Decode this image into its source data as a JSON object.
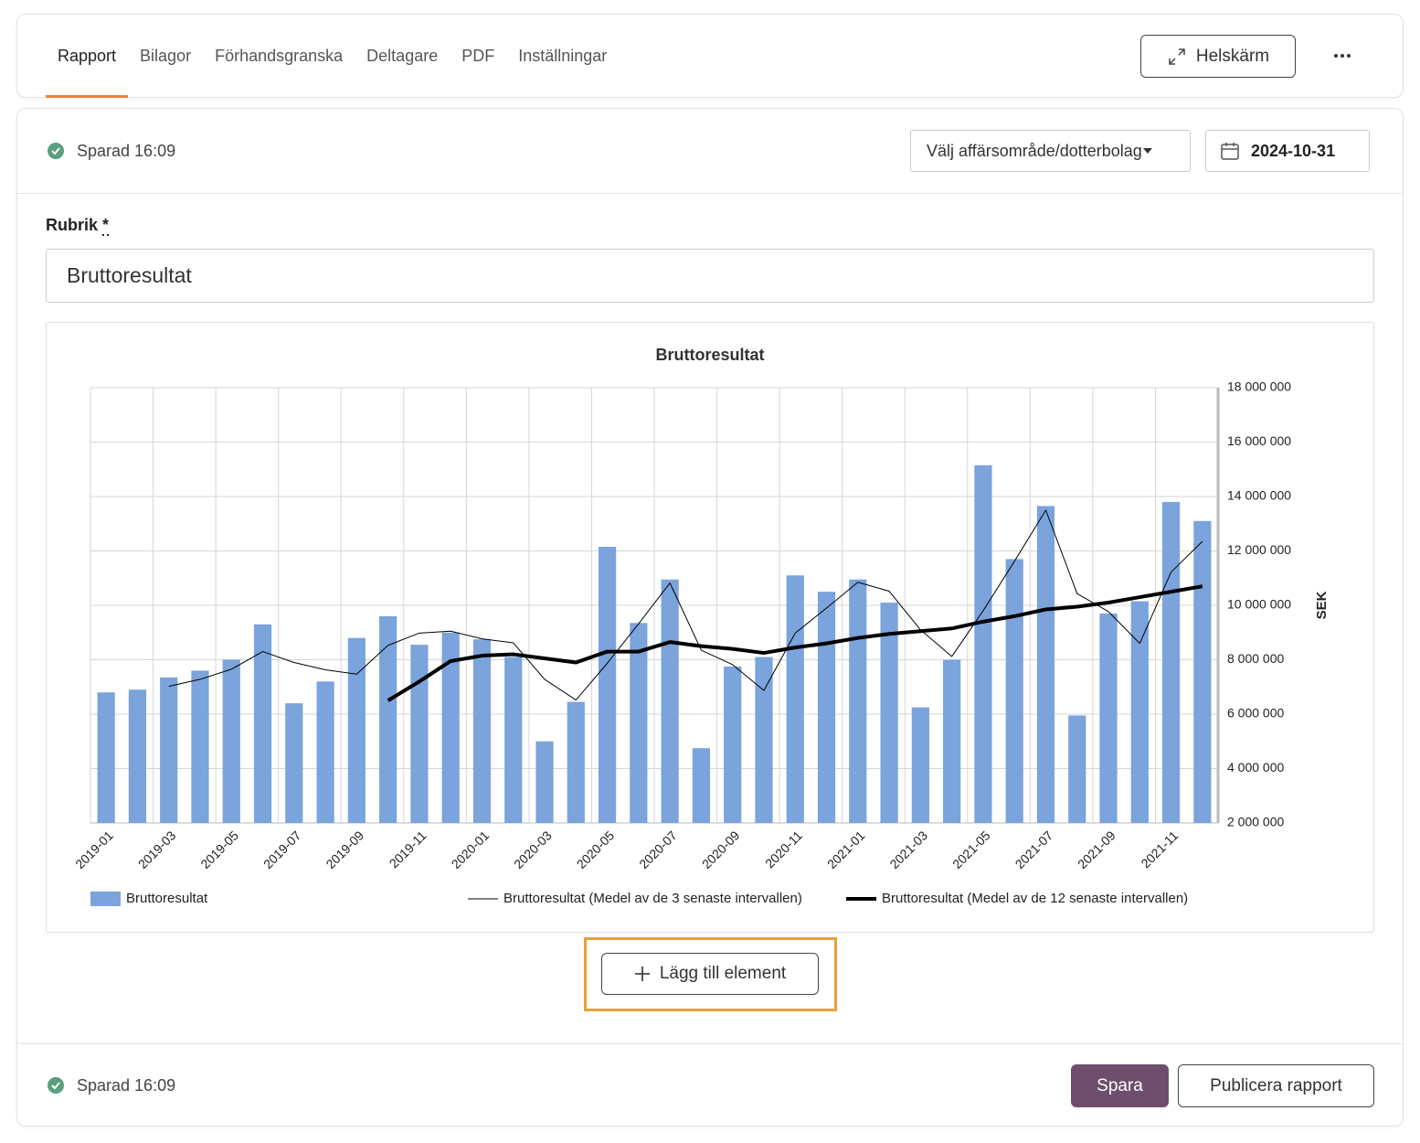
{
  "tabs": [
    "Rapport",
    "Bilagor",
    "Förhandsgranska",
    "Deltagare",
    "PDF",
    "Inställningar"
  ],
  "active_tab": 0,
  "fullscreen_button": "Helskärm",
  "status_top": "Sparad 16:09",
  "segment_select": "Välj affärsområde/dotterbolag",
  "date": "2024-10-31",
  "field_label": "Rubrik",
  "field_required": "*",
  "field_value": "Bruttoresultat",
  "add_button": "Lägg till element",
  "status_bottom": "Sparad 16:09",
  "save_button": "Spara",
  "publish_button": "Publicera rapport",
  "chart_data": {
    "type": "bar",
    "title": "Bruttoresultat",
    "y_axis_label": "SEK",
    "categories": [
      "2019-01",
      null,
      "2019-03",
      null,
      "2019-05",
      null,
      "2019-07",
      null,
      "2019-09",
      null,
      "2019-11",
      null,
      "2020-01",
      null,
      "2020-03",
      null,
      "2020-05",
      null,
      "2020-07",
      null,
      "2020-09",
      null,
      "2020-11",
      null,
      "2021-01",
      null,
      "2021-03",
      null,
      "2021-05",
      null,
      "2021-07",
      null,
      "2021-09",
      null,
      "2021-11",
      null
    ],
    "series": [
      {
        "name": "Bruttoresultat",
        "type": "bar",
        "color": "#7ba3dc",
        "values": [
          6800000,
          6900000,
          7350000,
          7600000,
          8000000,
          9300000,
          6400000,
          7200000,
          8800000,
          9600000,
          8550000,
          9000000,
          8750000,
          8100000,
          5000000,
          6450000,
          12150000,
          9350000,
          10950000,
          4750000,
          7750000,
          8100000,
          11100000,
          10500000,
          10950000,
          10100000,
          6250000,
          8000000,
          15150000,
          11700000,
          13650000,
          5950000,
          9700000,
          10150000,
          13800000,
          13100000
        ]
      },
      {
        "name": "Bruttoresultat (Medel av de 3 senaste intervallen)",
        "type": "line",
        "color": "#000000",
        "width": 1,
        "values": [
          null,
          null,
          7020000,
          7280000,
          7650000,
          8300000,
          7900000,
          7630000,
          7470000,
          8530000,
          8980000,
          9050000,
          8770000,
          8620000,
          7280000,
          6520000,
          7870000,
          9320000,
          10820000,
          8350000,
          7820000,
          6870000,
          8980000,
          9900000,
          10850000,
          10520000,
          9100000,
          8120000,
          9800000,
          11620000,
          13500000,
          10430000,
          9770000,
          8600000,
          11220000,
          12350000
        ]
      },
      {
        "name": "Bruttoresultat (Medel av de 12 senaste intervallen)",
        "type": "line",
        "color": "#000000",
        "width": 4,
        "values": [
          null,
          null,
          null,
          null,
          null,
          null,
          null,
          null,
          null,
          6500000,
          7200000,
          7950000,
          8150000,
          8200000,
          8050000,
          7900000,
          8300000,
          8300000,
          8650000,
          8500000,
          8400000,
          8250000,
          8450000,
          8600000,
          8800000,
          8950000,
          9050000,
          9150000,
          9400000,
          9600000,
          9850000,
          9950000,
          10100000,
          10300000,
          10500000,
          10700000
        ]
      }
    ],
    "ylim": [
      2000000,
      18000000
    ],
    "yticks": [
      {
        "value": 2000000,
        "label": "2 000 000"
      },
      {
        "value": 4000000,
        "label": "4 000 000"
      },
      {
        "value": 6000000,
        "label": "6 000 000"
      },
      {
        "value": 8000000,
        "label": "8 000 000"
      },
      {
        "value": 10000000,
        "label": "10 000 000"
      },
      {
        "value": 12000000,
        "label": "12 000 000"
      },
      {
        "value": 14000000,
        "label": "14 000 000"
      },
      {
        "value": 16000000,
        "label": "16 000 000"
      },
      {
        "value": 18000000,
        "label": "18 000 000"
      }
    ],
    "y_axis_side": "right",
    "grid": true,
    "legend": "bottom"
  }
}
